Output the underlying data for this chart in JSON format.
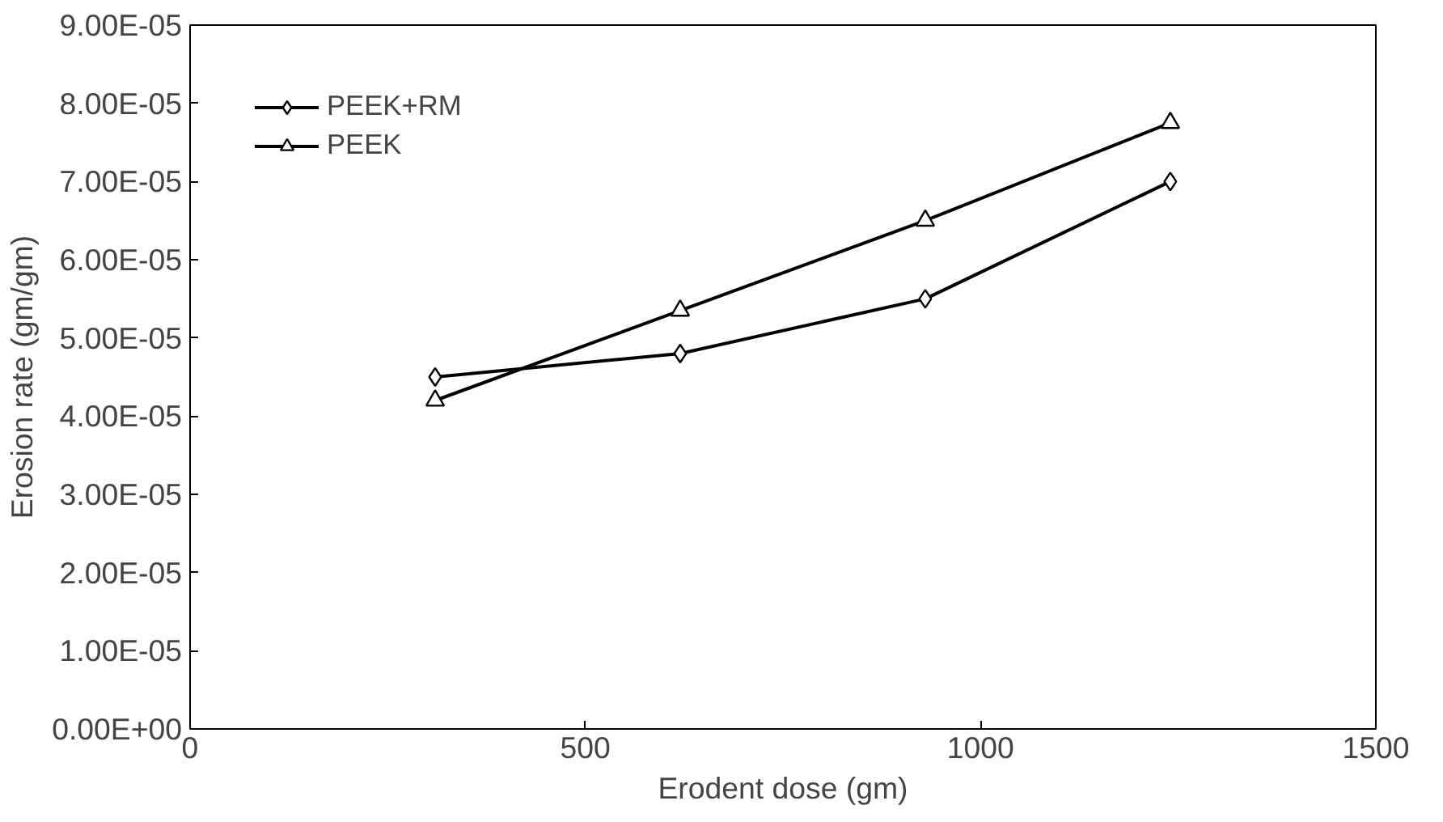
{
  "chart_data": {
    "type": "line",
    "xlabel": "Erodent dose (gm)",
    "ylabel": "Erosion rate (gm/gm)",
    "x": [
      310,
      620,
      930,
      1240
    ],
    "series": [
      {
        "name": "PEEK+RM",
        "color": "#000000",
        "marker": "diamond",
        "values": [
          4.5e-05,
          4.8e-05,
          5.5e-05,
          7e-05
        ]
      },
      {
        "name": "PEEK",
        "color": "#000000",
        "marker": "triangle",
        "values": [
          4.2e-05,
          5.35e-05,
          6.5e-05,
          7.75e-05
        ]
      }
    ],
    "xlim": [
      0,
      1500
    ],
    "xticks": [
      0,
      500,
      1000,
      1500
    ],
    "ylim": [
      0,
      9e-05
    ],
    "yticks": [
      {
        "value": 0,
        "label": "0.00E+00"
      },
      {
        "value": 1e-05,
        "label": "1.00E-05"
      },
      {
        "value": 2e-05,
        "label": "2.00E-05"
      },
      {
        "value": 3e-05,
        "label": "3.00E-05"
      },
      {
        "value": 4e-05,
        "label": "4.00E-05"
      },
      {
        "value": 5e-05,
        "label": "5.00E-05"
      },
      {
        "value": 6e-05,
        "label": "6.00E-05"
      },
      {
        "value": 7e-05,
        "label": "7.00E-05"
      },
      {
        "value": 8e-05,
        "label": "8.00E-05"
      },
      {
        "value": 9e-05,
        "label": "9.00E-05"
      }
    ],
    "legend": "top left",
    "grid": false,
    "line_style": "solid"
  }
}
